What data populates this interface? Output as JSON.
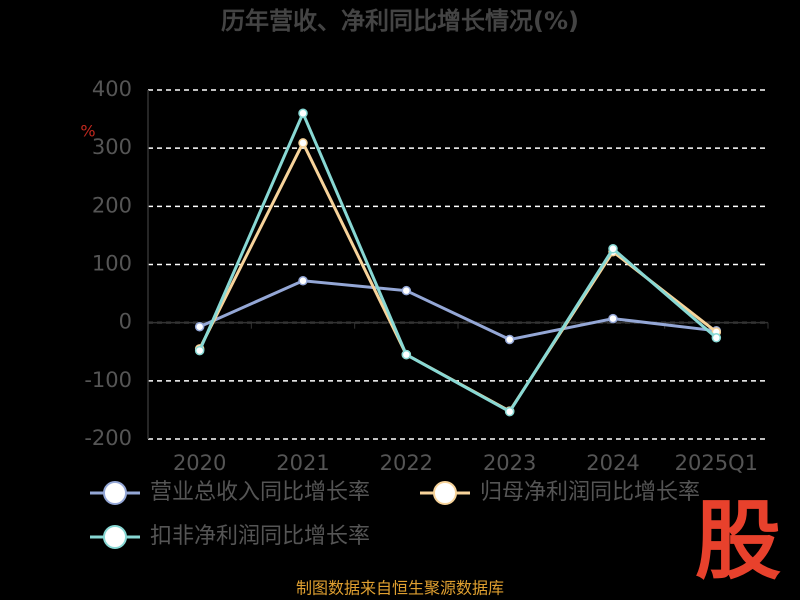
{
  "chart_data": {
    "type": "line",
    "title": "历年营收、净利同比增长情况(%)",
    "y_label": "%",
    "categories": [
      "2020",
      "2021",
      "2022",
      "2023",
      "2024",
      "2025Q1"
    ],
    "series": [
      {
        "name": "营业总收入同比增长率",
        "color": "#94a7d6",
        "values": [
          -7,
          72,
          55,
          -29,
          7,
          -14
        ]
      },
      {
        "name": "归母净利润同比增长率",
        "color": "#f7d39a",
        "values": [
          -45,
          309,
          -55,
          -152,
          122,
          -16
        ]
      },
      {
        "name": "扣非净利润同比增长率",
        "color": "#88d8d4",
        "values": [
          -48,
          360,
          -55,
          -153,
          127,
          -26
        ]
      }
    ],
    "ylim": [
      -200,
      400
    ],
    "yticks": [
      -200,
      -100,
      0,
      100,
      200,
      300,
      400
    ],
    "grid": true,
    "legend": "bottom"
  },
  "source": "制图数据来自恒生聚源数据库",
  "watermark": "股"
}
